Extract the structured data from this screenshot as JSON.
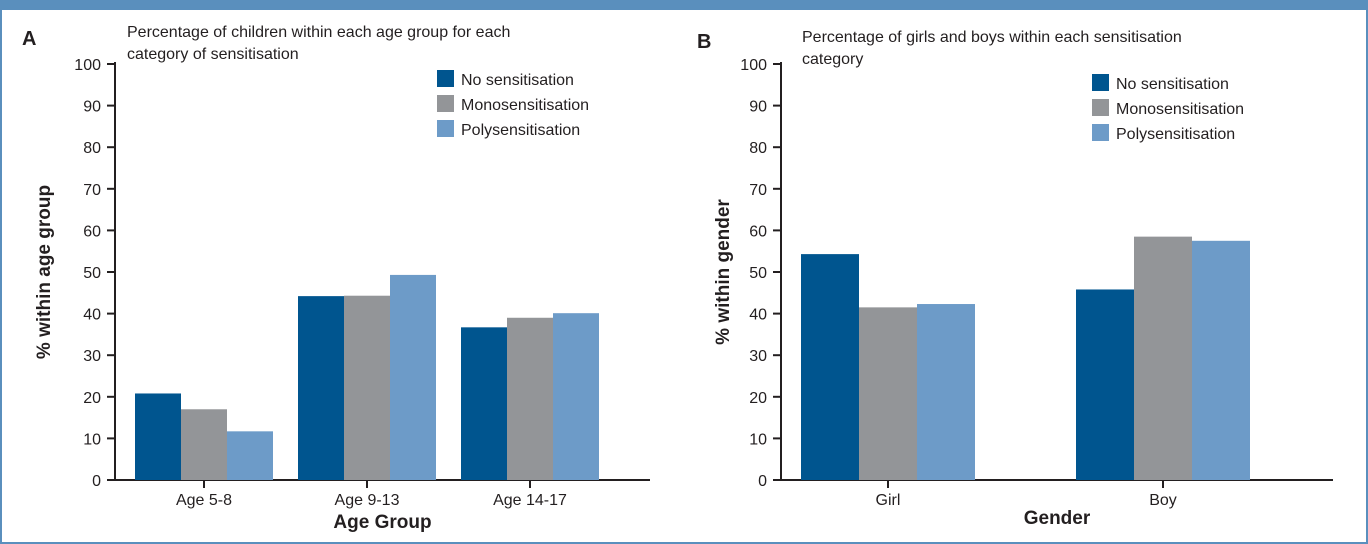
{
  "chart_data": [
    {
      "type": "bar",
      "panel_label": "A",
      "title": "Percentage of children within each age group for each category of sensitisation",
      "title_lines": [
        "Percentage of children within each age group for each",
        "category of sensitisation"
      ],
      "xlabel": "Age Group",
      "ylabel": "% within age group",
      "ylim": [
        0,
        100
      ],
      "yticks": [
        0,
        10,
        20,
        30,
        40,
        50,
        60,
        70,
        80,
        90,
        100
      ],
      "categories": [
        "Age 5-8",
        "Age 9-13",
        "Age 14-17"
      ],
      "series": [
        {
          "name": "No sensitisation",
          "color": "#00558f",
          "values": [
            20.8,
            44.2,
            36.7
          ]
        },
        {
          "name": "Monosensitisation",
          "color": "#939598",
          "values": [
            17.0,
            44.3,
            39.0
          ]
        },
        {
          "name": "Polysensitisation",
          "color": "#6d9bc8",
          "values": [
            11.7,
            49.3,
            40.1
          ]
        }
      ],
      "legend_position": "top-right",
      "grid": false
    },
    {
      "type": "bar",
      "panel_label": "B",
      "title": "Percentage of girls and boys within each sensitisation category",
      "title_lines": [
        "Percentage of girls and boys within each sensitisation",
        "category"
      ],
      "xlabel": "Gender",
      "ylabel": "% within gender",
      "ylim": [
        0,
        100
      ],
      "yticks": [
        0,
        10,
        20,
        30,
        40,
        50,
        60,
        70,
        80,
        90,
        100
      ],
      "categories": [
        "Girl",
        "Boy"
      ],
      "series": [
        {
          "name": "No sensitisation",
          "color": "#00558f",
          "values": [
            54.3,
            45.8
          ]
        },
        {
          "name": "Monosensitisation",
          "color": "#939598",
          "values": [
            41.5,
            58.5
          ]
        },
        {
          "name": "Polysensitisation",
          "color": "#6d9bc8",
          "values": [
            42.3,
            57.5
          ]
        }
      ],
      "legend_position": "top-right",
      "grid": false
    }
  ]
}
